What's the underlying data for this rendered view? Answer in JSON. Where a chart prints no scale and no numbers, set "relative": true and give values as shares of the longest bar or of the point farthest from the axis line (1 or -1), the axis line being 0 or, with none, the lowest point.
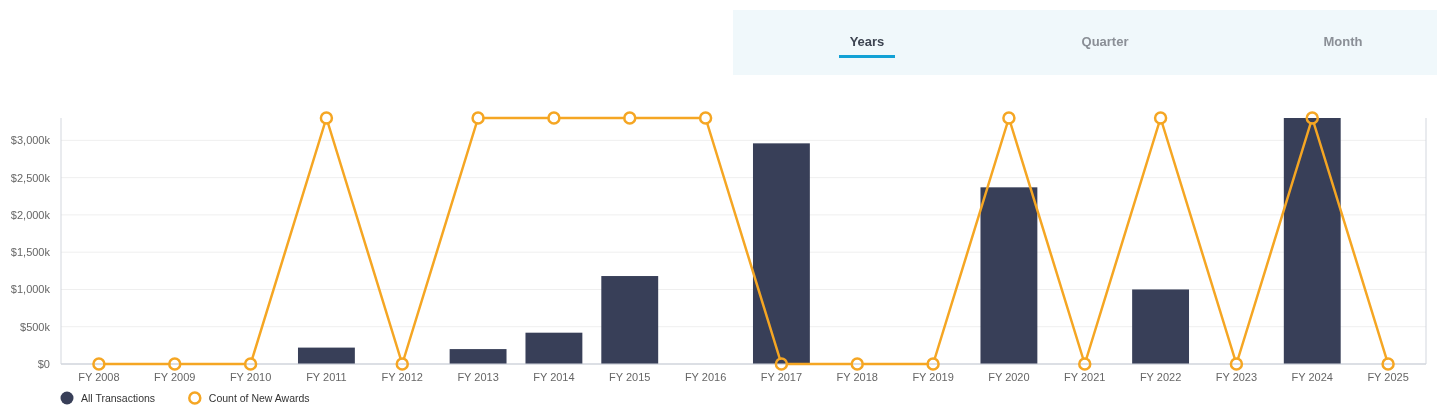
{
  "chart_data": [
    {
      "type": "bar",
      "categories": [
        "FY 2008",
        "FY 2009",
        "FY 2010",
        "FY 2011",
        "FY 2012",
        "FY 2013",
        "FY 2014",
        "FY 2015",
        "FY 2016",
        "FY 2017",
        "FY 2018",
        "FY 2019",
        "FY 2020",
        "FY 2021",
        "FY 2022",
        "FY 2023",
        "FY 2024",
        "FY 2025"
      ],
      "series": [
        {
          "name": "All Transactions",
          "color": "#383f58",
          "values": [
            0,
            0,
            0,
            220,
            0,
            200,
            420,
            1180,
            0,
            2960,
            0,
            0,
            2370,
            0,
            1000,
            0,
            3300,
            0
          ]
        }
      ],
      "ylim": [
        0,
        3300
      ],
      "yticks": [
        {
          "value": 0,
          "label": "$0"
        },
        {
          "value": 500,
          "label": "$500k"
        },
        {
          "value": 1000,
          "label": "$1,000k"
        },
        {
          "value": 1500,
          "label": "$1,500k"
        },
        {
          "value": 2000,
          "label": "$2,000k"
        },
        {
          "value": 2500,
          "label": "$2,500k"
        },
        {
          "value": 3000,
          "label": "$3,000k"
        }
      ],
      "grid": "y",
      "legend": "bottom left",
      "annotations": [
        "Years",
        "Quarter",
        "Month"
      ]
    },
    {
      "type": "line",
      "categories": [
        null,
        null,
        null,
        null,
        null,
        null,
        null,
        null,
        null,
        null,
        null,
        null,
        null,
        null,
        null,
        null,
        null,
        null
      ],
      "relative": true,
      "marker": "circle",
      "legend": "bottom left",
      "series": [
        {
          "name": "Count of New Awards",
          "color": "#f5a623",
          "values": [
            0,
            0,
            0,
            1,
            0,
            1,
            1,
            1,
            1,
            0,
            0,
            0,
            1,
            0,
            1,
            0,
            1,
            0
          ]
        }
      ]
    }
  ]
}
